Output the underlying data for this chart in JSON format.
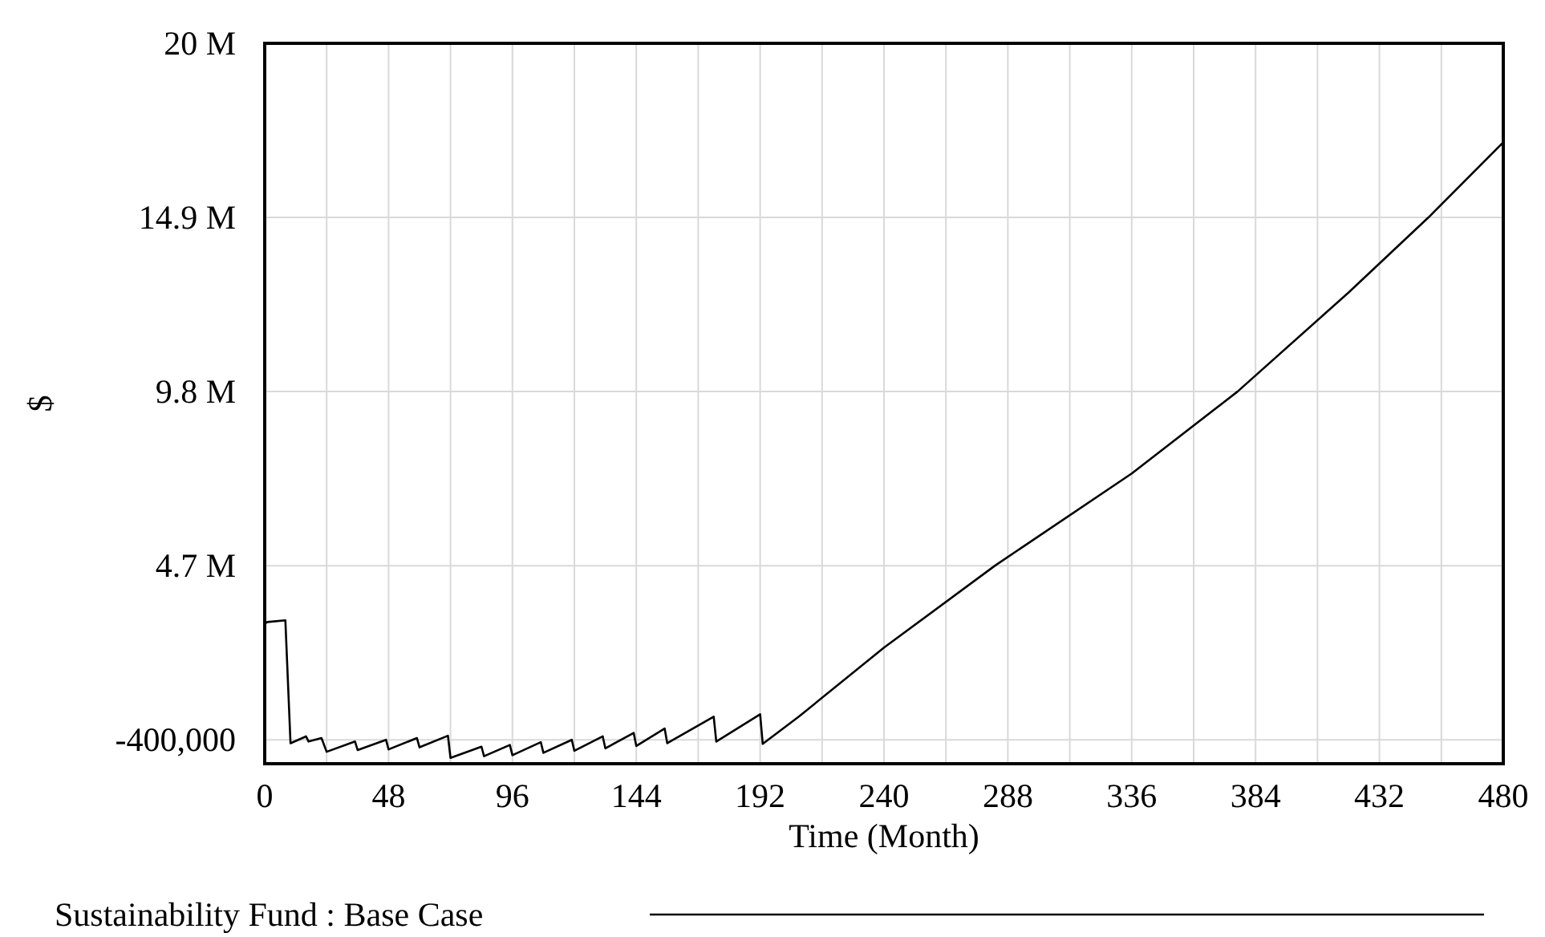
{
  "chart_data": {
    "type": "line",
    "xlabel": "Time (Month)",
    "ylabel": "$",
    "xlim": [
      0,
      480
    ],
    "ylim": [
      -1100000,
      20000000
    ],
    "xticks": [
      0,
      {
        "value": 24,
        "label": null
      },
      48,
      {
        "value": 72,
        "label": null
      },
      96,
      {
        "value": 120,
        "label": null
      },
      144,
      {
        "value": 168,
        "label": null
      },
      192,
      {
        "value": 216,
        "label": null
      },
      240,
      {
        "value": 264,
        "label": null
      },
      288,
      {
        "value": 312,
        "label": null
      },
      336,
      {
        "value": 360,
        "label": null
      },
      384,
      {
        "value": 408,
        "label": null
      },
      432,
      {
        "value": 456,
        "label": null
      },
      480
    ],
    "yticks": [
      {
        "value": -400000,
        "label": "-400,000"
      },
      {
        "value": 4700000,
        "label": "4.7 M"
      },
      {
        "value": 9800000,
        "label": "9.8 M"
      },
      {
        "value": 14900000,
        "label": "14.9 M"
      },
      {
        "value": 20000000,
        "label": "20 M"
      }
    ],
    "grid": true,
    "legend": "bottom",
    "line_style": "solid",
    "marker": "none",
    "series": [
      {
        "name": "Sustainability Fund : Base Case",
        "color": "#000000",
        "x": [
          0,
          0,
          1,
          8,
          10,
          16,
          17,
          22,
          24,
          35,
          36,
          47,
          48,
          59,
          60,
          71,
          72,
          84,
          85,
          95,
          96,
          107,
          108,
          119,
          120,
          131,
          132,
          143,
          144,
          155,
          156,
          174,
          175,
          192,
          193,
          207,
          240,
          283,
          336,
          377,
          420,
          451,
          480
        ],
        "values": [
          1160000,
          3000000,
          3050000,
          3100000,
          -500000,
          -300000,
          -450000,
          -350000,
          -750000,
          -450000,
          -700000,
          -400000,
          -680000,
          -350000,
          -620000,
          -280000,
          -930000,
          -600000,
          -880000,
          -550000,
          -850000,
          -470000,
          -780000,
          -400000,
          -720000,
          -300000,
          -650000,
          -200000,
          -580000,
          -70000,
          -500000,
          280000,
          -450000,
          350000,
          -520000,
          280000,
          2300000,
          4700000,
          7400000,
          9800000,
          12700000,
          14900000,
          17100000
        ]
      }
    ]
  }
}
